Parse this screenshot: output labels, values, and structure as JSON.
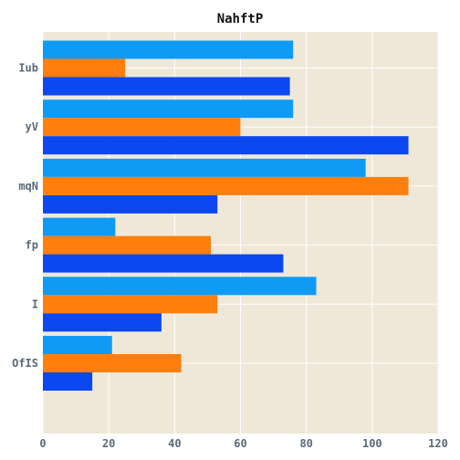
{
  "chart_data": {
    "type": "bar",
    "orientation": "horizontal",
    "title": "NahftP",
    "xlabel": "",
    "ylabel": "",
    "xlim": [
      0,
      120
    ],
    "xticks": [
      0,
      20,
      40,
      60,
      80,
      100,
      120
    ],
    "grid": true,
    "categories": [
      "Iub",
      "yV",
      "mqN",
      "fp",
      "I",
      "OfIS"
    ],
    "series": [
      {
        "color": "#0f9bf5",
        "values": [
          76,
          76,
          98,
          22,
          83,
          21
        ]
      },
      {
        "color": "#ff7f0e",
        "values": [
          25,
          60,
          111,
          51,
          53,
          42
        ]
      },
      {
        "color": "#0d47f0",
        "values": [
          75,
          111,
          53,
          73,
          36,
          15
        ]
      }
    ],
    "plot_background": "#efe8d8",
    "grid_color": "#ffffff"
  }
}
